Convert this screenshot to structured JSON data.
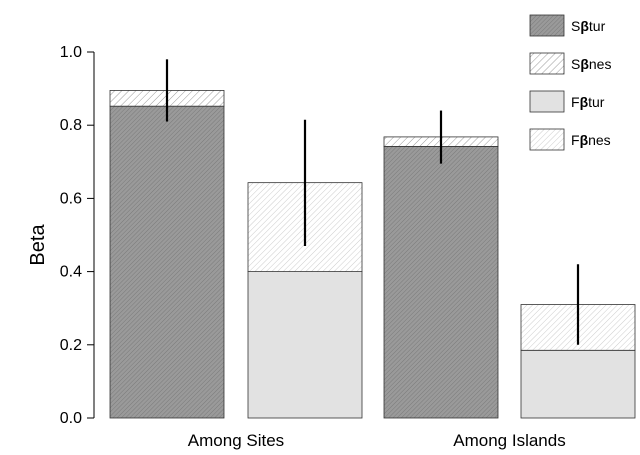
{
  "chart_data": {
    "type": "bar",
    "stacked": true,
    "title": "",
    "xlabel": "",
    "ylabel": "Beta",
    "ylim": [
      0,
      1.0
    ],
    "yticks": [
      "0.0",
      "0.2",
      "0.4",
      "0.6",
      "0.8",
      "1.0"
    ],
    "categories": [
      "Among Sites",
      "Among Islands"
    ],
    "groups": [
      {
        "category": "Among Sites",
        "bars": [
          {
            "series": "S",
            "turnover": 0.852,
            "nestedness": 0.043,
            "error_low": 0.81,
            "error_high": 0.98
          },
          {
            "series": "F",
            "turnover": 0.4,
            "nestedness": 0.243,
            "error_low": 0.47,
            "error_high": 0.815
          }
        ]
      },
      {
        "category": "Among Islands",
        "bars": [
          {
            "series": "S",
            "turnover": 0.742,
            "nestedness": 0.026,
            "error_low": 0.695,
            "error_high": 0.84
          },
          {
            "series": "F",
            "turnover": 0.185,
            "nestedness": 0.125,
            "error_low": 0.2,
            "error_high": 0.42
          }
        ]
      }
    ],
    "legend": {
      "position": "top-right",
      "entries": [
        {
          "prefix": "S",
          "symbol": "β",
          "suffix": "tur",
          "fill": "#9a9a9a",
          "pattern": "dense"
        },
        {
          "prefix": "S",
          "symbol": "β",
          "suffix": "nes",
          "fill": "#ffffff",
          "pattern": "hatch"
        },
        {
          "prefix": "F",
          "symbol": "β",
          "suffix": "tur",
          "fill": "#e2e2e2",
          "pattern": "none"
        },
        {
          "prefix": "F",
          "symbol": "β",
          "suffix": "nes",
          "fill": "#ffffff",
          "pattern": "hatch-light"
        }
      ]
    },
    "colors": {
      "s_turnover": "#9a9a9a",
      "f_turnover": "#e2e2e2",
      "hatch": "#9a9a9a",
      "hatch_light": "#c4c4c4",
      "error_bar": "#000000"
    }
  }
}
